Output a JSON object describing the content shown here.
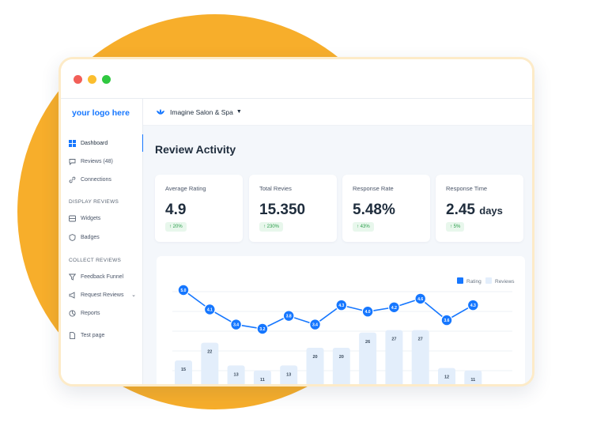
{
  "window": {
    "controls": [
      "close",
      "minimize",
      "maximize"
    ]
  },
  "sidebar": {
    "logo": "your logo here",
    "items": [
      {
        "label": "Dashboard",
        "icon": "grid-icon"
      },
      {
        "label": "Reviews (48)",
        "icon": "chat-icon"
      },
      {
        "label": "Connections",
        "icon": "link-icon"
      }
    ],
    "sections": [
      {
        "title": "DISPLAY REVIEWS",
        "items": [
          {
            "label": "Widgets",
            "icon": "widget-icon"
          },
          {
            "label": "Badges",
            "icon": "shield-icon"
          }
        ]
      },
      {
        "title": "COLLECT REVIEWS",
        "items": [
          {
            "label": "Feedback Funnel",
            "icon": "funnel-icon"
          },
          {
            "label": "Request Reviews",
            "icon": "megaphone-icon"
          },
          {
            "label": "Reports",
            "icon": "chart-icon"
          },
          {
            "label": "Test page",
            "icon": "page-icon"
          }
        ]
      }
    ]
  },
  "topbar": {
    "business": "Imagine Salon & Spa"
  },
  "main": {
    "title": "Review Activity",
    "stats": [
      {
        "label": "Average Rating",
        "value": "4.9",
        "unit": "",
        "change": "↑ 20%"
      },
      {
        "label": "Total Revies",
        "value": "15.350",
        "unit": "",
        "change": "↑ 230%"
      },
      {
        "label": "Response Rate",
        "value": "5.48%",
        "unit": "",
        "change": "↑ 43%"
      },
      {
        "label": "Response Time",
        "value": "2.45",
        "unit": "days",
        "change": "↑ 5%"
      }
    ]
  },
  "chart_data": {
    "type": "bar",
    "legend": [
      "Rating",
      "Reviews"
    ],
    "legend_position": "top-right",
    "categories": [
      "",
      "",
      "",
      "",
      "",
      "",
      "",
      "",
      "",
      "",
      "",
      ""
    ],
    "series": [
      {
        "name": "Reviews",
        "type": "bar",
        "values": [
          15,
          22,
          13,
          11,
          13,
          20,
          20,
          26,
          27,
          27,
          12,
          11
        ]
      },
      {
        "name": "Rating",
        "type": "line",
        "values": [
          5.0,
          4.1,
          3.4,
          3.2,
          3.8,
          3.4,
          4.3,
          4.0,
          4.2,
          4.6,
          3.6,
          4.3
        ]
      }
    ],
    "colors": {
      "Rating": "#1677ff",
      "Reviews": "#e3eefb"
    }
  }
}
